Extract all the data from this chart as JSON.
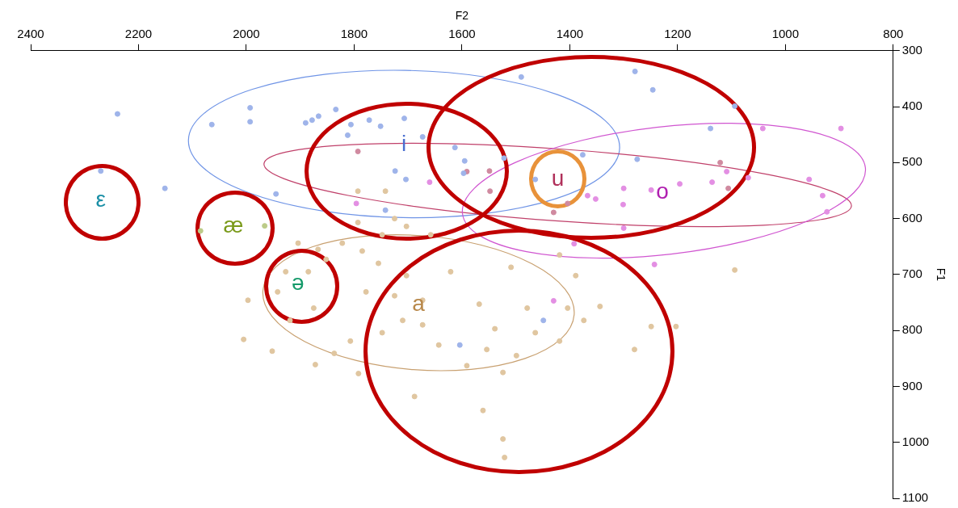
{
  "chart_data": {
    "type": "scatter",
    "xlabel": "F2",
    "ylabel": "F1",
    "xlim": [
      2400,
      800
    ],
    "ylim": [
      1100,
      300
    ],
    "xticks": [
      2400,
      2200,
      2000,
      1800,
      1600,
      1400,
      1200,
      1000,
      800
    ],
    "yticks": [
      300,
      400,
      500,
      600,
      700,
      800,
      900,
      1000,
      1100
    ],
    "grid": false,
    "legend": false,
    "marker": "circle",
    "annotations": [
      "ε",
      "æ",
      "ə",
      "i",
      "u",
      "o",
      "a"
    ],
    "series": [
      {
        "type": "scatter",
        "color": "#9fb4ea",
        "x": [
          2239,
          2151,
          2270,
          2064,
          1993,
          1993,
          1890,
          1878,
          1866,
          1834,
          1806,
          1772,
          1751,
          1707,
          1673,
          1724,
          1704,
          1742,
          1613,
          1595,
          1490,
          1279,
          1246,
          1139,
          1094,
          1275,
          1376,
          1522,
          1597,
          1464,
          1945,
          1604,
          1449,
          1812
        ],
        "values": [
          413,
          546,
          515,
          432,
          402,
          427,
          429,
          424,
          417,
          405,
          432,
          424,
          435,
          421,
          454,
          515,
          530,
          585,
          473,
          497,
          347,
          337,
          370,
          439,
          399,
          494,
          486,
          492,
          519,
          530,
          556,
          826,
          782,
          451
        ]
      },
      {
        "type": "scatter",
        "color": "#d08aa0",
        "x": [
          1793,
          1591,
          1548,
          1549,
          1121,
          1106,
          1430,
          1404
        ],
        "values": [
          480,
          516,
          551,
          515,
          500,
          546,
          589,
          573
        ]
      },
      {
        "type": "scatter",
        "color": "#e38fe3",
        "x": [
          1660,
          1796,
          1249,
          1300,
          1301,
          1367,
          1352,
          1196,
          1109,
          1069,
          1136,
          897,
          1042,
          956,
          923,
          931,
          1300,
          1392,
          1243,
          1430
        ],
        "values": [
          535,
          573,
          549,
          546,
          575,
          559,
          565,
          538,
          516,
          527,
          535,
          439,
          439,
          530,
          588,
          559,
          617,
          645,
          682,
          747
        ]
      },
      {
        "type": "scatter",
        "color": "#e0c6a0",
        "x": [
          1793,
          1742,
          1997,
          2005,
          1952,
          1872,
          1942,
          1927,
          1904,
          1867,
          1885,
          1852,
          1822,
          1785,
          1755,
          1778,
          1725,
          1703,
          1673,
          1710,
          1748,
          1807,
          1837,
          1792,
          1673,
          1643,
          1621,
          1568,
          1539,
          1509,
          1479,
          1464,
          1419,
          1404,
          1374,
          1344,
          1389,
          1419,
          1249,
          1280,
          1203,
          1094,
          1591,
          1524,
          1499,
          1688,
          1561,
          1524,
          1521,
          1748,
          1703,
          1658,
          1793,
          1725,
          1875,
          1919,
          1554
        ],
        "values": [
          551,
          551,
          746,
          816,
          837,
          861,
          731,
          695,
          644,
          655,
          695,
          673,
          644,
          658,
          680,
          731,
          738,
          702,
          746,
          782,
          804,
          819,
          841,
          877,
          790,
          826,
          695,
          753,
          797,
          687,
          760,
          804,
          819,
          760,
          782,
          757,
          702,
          665,
          793,
          834,
          793,
          692,
          863,
          875,
          845,
          918,
          943,
          994,
          1027,
          629,
          614,
          629,
          607,
          600,
          760,
          782,
          834
        ]
      },
      {
        "type": "scatter",
        "color": "#bccb88",
        "x": [
          2085,
          1966
        ],
        "values": [
          622,
          613
        ]
      }
    ]
  }
}
